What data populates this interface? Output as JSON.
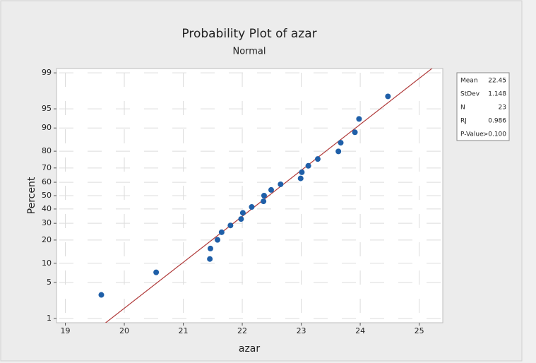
{
  "chart_data": {
    "type": "probability",
    "title": "Probability Plot of azar",
    "subtitle": "Normal",
    "x_label": "azar",
    "y_label": "Percent",
    "yscale": "normal",
    "grid": true,
    "point_color": "#1f5fa8",
    "line_color": "#b03a3a",
    "x": [
      19.61,
      20.54,
      21.45,
      21.46,
      21.58,
      21.65,
      21.8,
      21.98,
      22.01,
      22.16,
      22.36,
      22.37,
      22.49,
      22.65,
      22.99,
      23.01,
      23.12,
      23.28,
      23.63,
      23.67,
      23.91,
      23.98,
      24.47
    ],
    "values": [
      3.0,
      7.3,
      11.5,
      15.8,
      20.1,
      24.4,
      28.6,
      32.9,
      37.2,
      41.5,
      45.7,
      50.0,
      54.3,
      58.5,
      62.8,
      67.1,
      71.4,
      75.6,
      79.9,
      84.2,
      88.5,
      92.7,
      97.0
    ],
    "xlim": [
      18.85,
      25.4
    ],
    "xticks": [
      19,
      20,
      21,
      22,
      23,
      24,
      25
    ],
    "ylim": [
      0.8,
      99.2
    ],
    "yticks": [
      1,
      5,
      10,
      20,
      30,
      40,
      50,
      60,
      70,
      80,
      90,
      95,
      99
    ],
    "stats": [
      {
        "label": "Mean",
        "value": 22.45
      },
      {
        "label": "StDev",
        "value": 1.148
      },
      {
        "label": "N",
        "value": 23
      },
      {
        "label": "RJ",
        "value": 0.986
      },
      {
        "label": "P-Value",
        "value": ">0.100"
      }
    ]
  }
}
